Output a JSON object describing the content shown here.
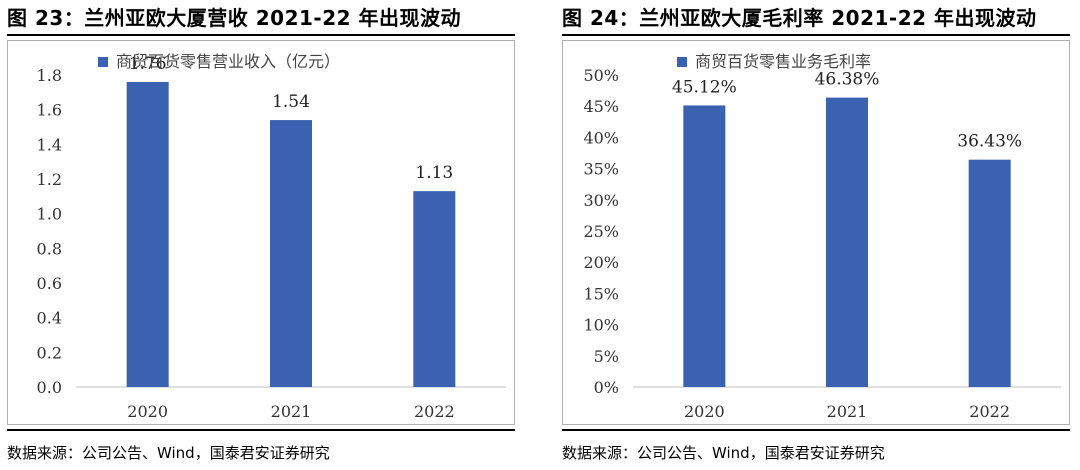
{
  "chart_data": [
    {
      "type": "bar",
      "title": "图 23：兰州亚欧大厦营收 2021-22 年出现波动",
      "categories": [
        "2020",
        "2021",
        "2022"
      ],
      "series": [
        {
          "name": "商贸百货零售营业收入（亿元）",
          "values": [
            1.76,
            1.54,
            1.13
          ]
        }
      ],
      "data_labels": [
        "1.76",
        "1.54",
        "1.13"
      ],
      "y_ticks": [
        "0.0",
        "0.2",
        "0.4",
        "0.6",
        "0.8",
        "1.0",
        "1.2",
        "1.4",
        "1.6",
        "1.8"
      ],
      "ylim": [
        0,
        1.8
      ],
      "xlabel": "",
      "ylabel": "",
      "legend_position": "top-left",
      "grid": false,
      "bar_color": "#3a62b0",
      "source": "数据来源：公司公告、Wind，国泰君安证券研究"
    },
    {
      "type": "bar",
      "title": "图 24：兰州亚欧大厦毛利率 2021-22 年出现波动",
      "categories": [
        "2020",
        "2021",
        "2022"
      ],
      "series": [
        {
          "name": "商贸百货零售业务毛利率",
          "values": [
            45.12,
            46.38,
            36.43
          ]
        }
      ],
      "data_labels": [
        "45.12%",
        "46.38%",
        "36.43%"
      ],
      "y_ticks": [
        "0%",
        "5%",
        "10%",
        "15%",
        "20%",
        "25%",
        "30%",
        "35%",
        "40%",
        "45%",
        "50%"
      ],
      "ylim": [
        0,
        50
      ],
      "xlabel": "",
      "ylabel": "",
      "legend_position": "top-left",
      "grid": false,
      "bar_color": "#3a62b0",
      "source": "数据来源：公司公告、Wind，国泰君安证券研究"
    }
  ]
}
